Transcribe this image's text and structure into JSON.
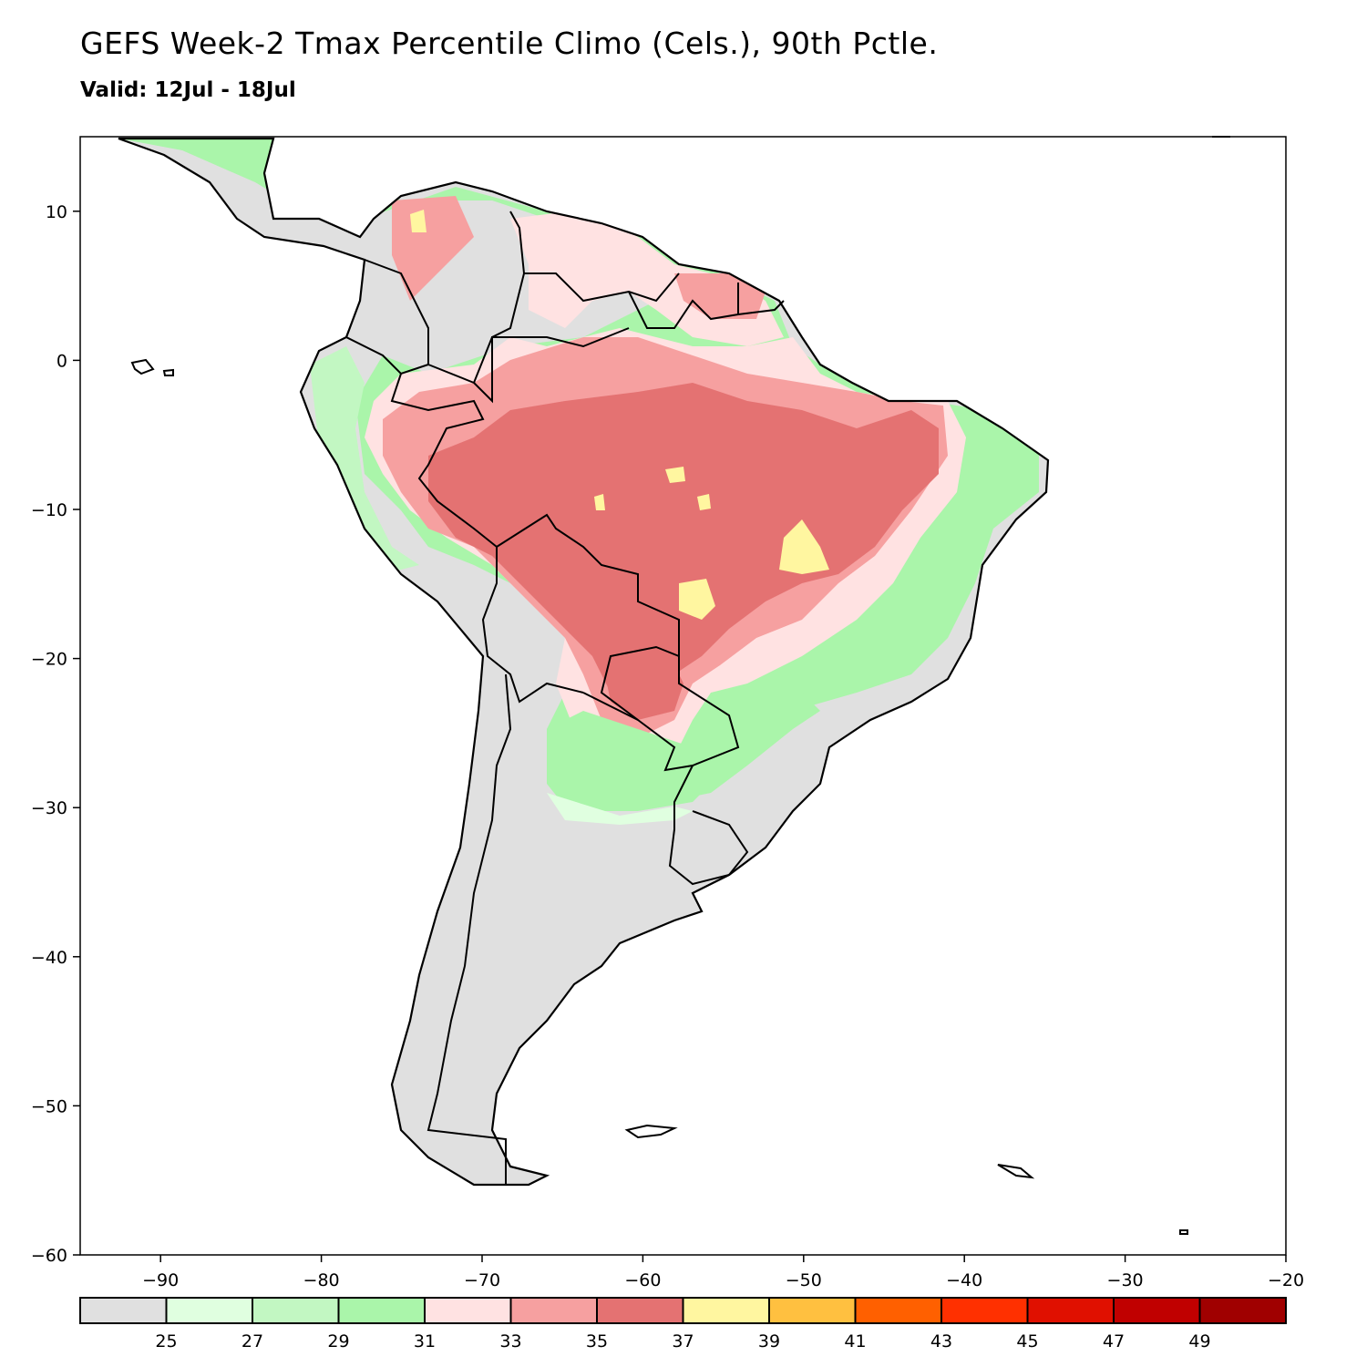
{
  "title": "GEFS Week-2 Tmax Percentile Climo (Cels.), 90th Pctle.",
  "subtitle": "Valid: 12Jul - 18Jul",
  "map": {
    "lon_range": [
      -95,
      -20
    ],
    "lat_range": [
      -60,
      15
    ],
    "lon_ticks": [
      "−90",
      "−80",
      "−70",
      "−60",
      "−50",
      "−40",
      "−30",
      "−20"
    ],
    "lat_ticks": [
      "10",
      "0",
      "−10",
      "−20",
      "−30",
      "−40",
      "−50",
      "−60"
    ]
  },
  "colorbar": {
    "colors": [
      "#e0e0e0",
      "#e0ffe0",
      "#c2f7c2",
      "#aaf5aa",
      "#ffe2e2",
      "#f6a0a0",
      "#e47272",
      "#fff6a0",
      "#ffc040",
      "#ff6000",
      "#ff3000",
      "#e01000",
      "#c00000",
      "#a00000"
    ],
    "labels": [
      "25",
      "27",
      "29",
      "31",
      "33",
      "35",
      "37",
      "39",
      "41",
      "43",
      "45",
      "47",
      "49"
    ]
  },
  "colors": {
    "land_below_25": "#e0e0e0",
    "ocean": "#ffffff",
    "coastline": "#000000"
  }
}
